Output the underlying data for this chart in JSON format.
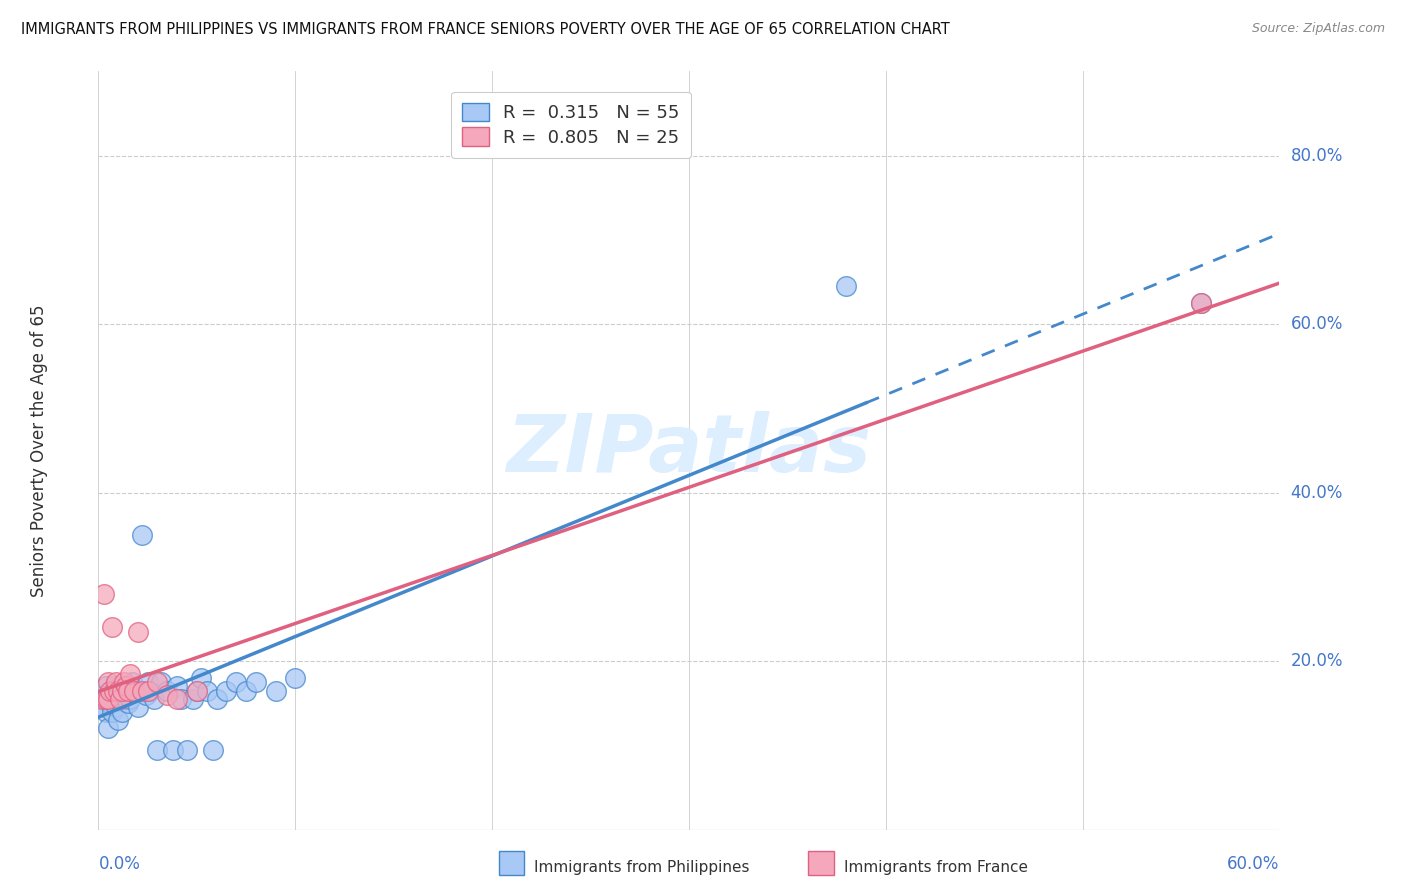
{
  "title": "IMMIGRANTS FROM PHILIPPINES VS IMMIGRANTS FROM FRANCE SENIORS POVERTY OVER THE AGE OF 65 CORRELATION CHART",
  "source": "Source: ZipAtlas.com",
  "ylabel": "Seniors Poverty Over the Age of 65",
  "ytick_labels": [
    "80.0%",
    "60.0%",
    "40.0%",
    "20.0%"
  ],
  "ytick_values": [
    0.8,
    0.6,
    0.4,
    0.2
  ],
  "xtick_labels": [
    "0.0%",
    "60.0%"
  ],
  "xlim": [
    0.0,
    0.6
  ],
  "ylim": [
    0.0,
    0.9
  ],
  "r_philippines": 0.315,
  "n_philippines": 55,
  "r_france": 0.805,
  "n_france": 25,
  "color_philippines": "#a8c8f5",
  "color_france": "#f5a8bc",
  "line_color_philippines": "#4488cc",
  "line_color_france": "#e06080",
  "watermark_color": "#ddeeff",
  "philippines_x": [
    0.002,
    0.003,
    0.003,
    0.004,
    0.004,
    0.005,
    0.005,
    0.006,
    0.006,
    0.007,
    0.007,
    0.008,
    0.008,
    0.009,
    0.009,
    0.01,
    0.01,
    0.011,
    0.011,
    0.012,
    0.012,
    0.013,
    0.014,
    0.015,
    0.015,
    0.016,
    0.017,
    0.018,
    0.02,
    0.022,
    0.024,
    0.025,
    0.026,
    0.028,
    0.03,
    0.032,
    0.035,
    0.038,
    0.04,
    0.042,
    0.045,
    0.048,
    0.05,
    0.052,
    0.055,
    0.058,
    0.06,
    0.065,
    0.07,
    0.075,
    0.08,
    0.09,
    0.1,
    0.38,
    0.56
  ],
  "philippines_y": [
    0.145,
    0.155,
    0.16,
    0.14,
    0.17,
    0.12,
    0.16,
    0.155,
    0.15,
    0.14,
    0.165,
    0.155,
    0.17,
    0.145,
    0.16,
    0.13,
    0.165,
    0.155,
    0.17,
    0.14,
    0.16,
    0.155,
    0.165,
    0.15,
    0.16,
    0.155,
    0.175,
    0.165,
    0.145,
    0.35,
    0.16,
    0.175,
    0.165,
    0.155,
    0.095,
    0.175,
    0.165,
    0.095,
    0.17,
    0.155,
    0.095,
    0.155,
    0.165,
    0.18,
    0.165,
    0.095,
    0.155,
    0.165,
    0.175,
    0.165,
    0.175,
    0.165,
    0.18,
    0.645,
    0.625
  ],
  "france_x": [
    0.002,
    0.003,
    0.004,
    0.005,
    0.005,
    0.006,
    0.007,
    0.008,
    0.009,
    0.01,
    0.011,
    0.012,
    0.013,
    0.014,
    0.015,
    0.016,
    0.018,
    0.02,
    0.022,
    0.025,
    0.03,
    0.035,
    0.04,
    0.05,
    0.56
  ],
  "france_y": [
    0.155,
    0.28,
    0.155,
    0.155,
    0.175,
    0.165,
    0.24,
    0.165,
    0.175,
    0.165,
    0.155,
    0.165,
    0.175,
    0.17,
    0.165,
    0.185,
    0.165,
    0.235,
    0.165,
    0.165,
    0.175,
    0.16,
    0.155,
    0.165,
    0.625
  ]
}
